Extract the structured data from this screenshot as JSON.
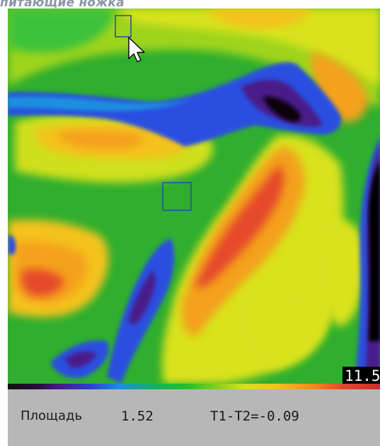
{
  "header": {
    "title": "питающие ножка"
  },
  "viewer": {
    "overlay_value": "11.5",
    "cursor_icon": "arrow-pointer-icon",
    "colors": {
      "hot": "#e03a2a",
      "warm": "#f4a11e",
      "mild": "#d9e21c",
      "neutral": "#2fb02f",
      "cool": "#2a4fe0",
      "cold": "#3b1470",
      "frame": "#000000",
      "roi_box": "#2b4aa8"
    }
  },
  "status": {
    "area_label": "Площадь",
    "area_value": "1.52",
    "diff_text": "T1-T2=-0.09"
  }
}
